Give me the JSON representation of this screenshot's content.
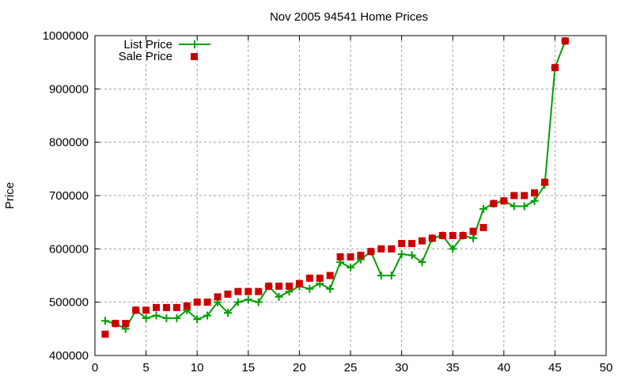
{
  "chart_data": {
    "type": "line",
    "title": "Nov 2005 94541 Home Prices",
    "xlabel": "",
    "ylabel": "Price",
    "xlim": [
      0,
      50
    ],
    "ylim": [
      400000,
      1000000
    ],
    "xticks": [
      0,
      5,
      10,
      15,
      20,
      25,
      30,
      35,
      40,
      45,
      50
    ],
    "yticks": [
      400000,
      500000,
      600000,
      700000,
      800000,
      900000,
      1000000
    ],
    "grid": true,
    "legend_position": "top-left",
    "x": [
      1,
      2,
      3,
      4,
      5,
      6,
      7,
      8,
      9,
      10,
      11,
      12,
      13,
      14,
      15,
      16,
      17,
      18,
      19,
      20,
      21,
      22,
      23,
      24,
      25,
      26,
      27,
      28,
      29,
      30,
      31,
      32,
      33,
      34,
      35,
      36,
      37,
      38,
      39,
      40,
      41,
      42,
      43,
      44,
      45,
      46
    ],
    "series": [
      {
        "name": "List Price",
        "style": "linespoints",
        "color": "#00a000",
        "values": [
          465000,
          460000,
          450000,
          485000,
          470000,
          475000,
          470000,
          470000,
          485000,
          468000,
          475000,
          500000,
          480000,
          500000,
          505000,
          500000,
          530000,
          510000,
          520000,
          530000,
          525000,
          535000,
          525000,
          575000,
          565000,
          580000,
          595000,
          550000,
          550000,
          590000,
          588000,
          575000,
          620000,
          625000,
          600000,
          625000,
          620000,
          675000,
          685000,
          690000,
          680000,
          680000,
          690000,
          720000,
          940000,
          990000
        ]
      },
      {
        "name": "Sale Price",
        "style": "points",
        "color": "#cc0000",
        "values": [
          440000,
          460000,
          460000,
          485000,
          485000,
          490000,
          490000,
          490000,
          493000,
          500000,
          500000,
          510000,
          515000,
          520000,
          520000,
          520000,
          530000,
          530000,
          530000,
          535000,
          545000,
          545000,
          550000,
          585000,
          585000,
          588000,
          595000,
          600000,
          600000,
          610000,
          610000,
          615000,
          620000,
          625000,
          625000,
          625000,
          633000,
          640000,
          685000,
          690000,
          700000,
          700000,
          705000,
          725000,
          940000,
          990000
        ]
      }
    ]
  }
}
